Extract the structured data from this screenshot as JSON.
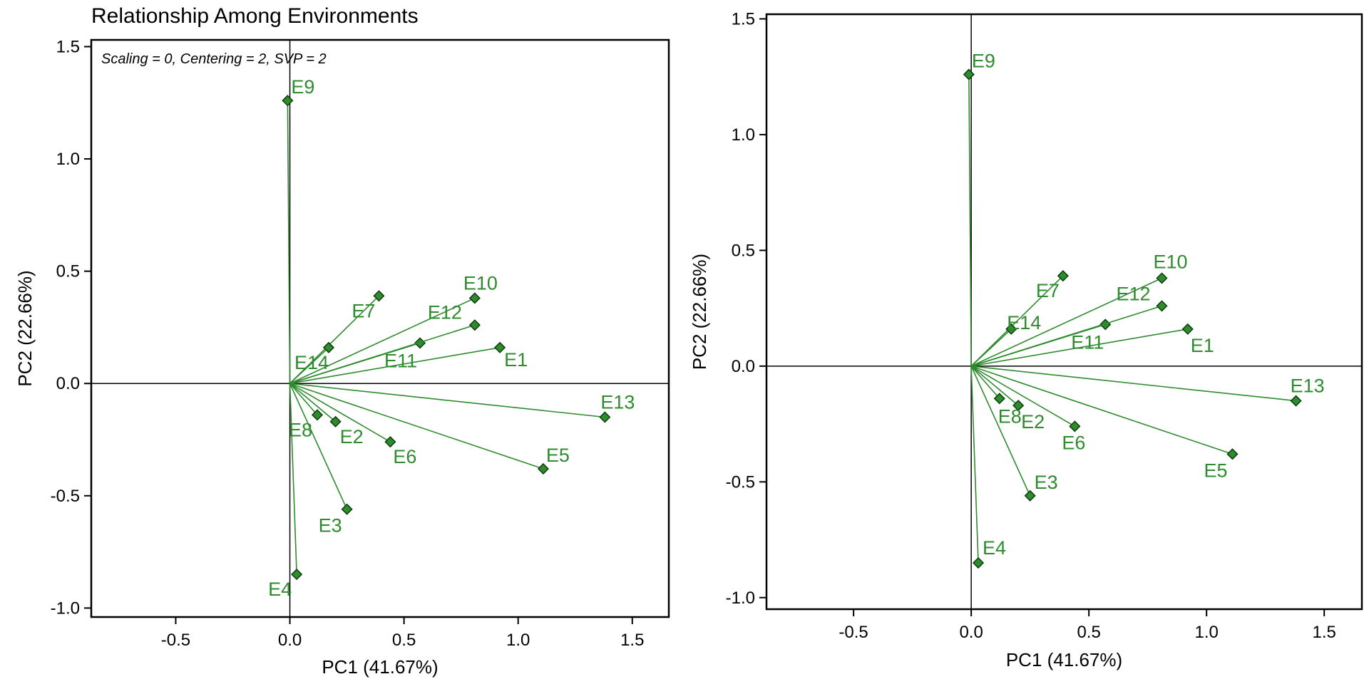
{
  "chart_data": [
    {
      "type": "scatter",
      "title": "Relationship Among Environments",
      "subtitle": "Scaling = 0, Centering = 2, SVP = 2",
      "xlabel": "PC1 (41.67%)",
      "ylabel": "PC2 (22.66%)",
      "xlim": [
        -0.87,
        1.66
      ],
      "ylim": [
        -1.04,
        1.53
      ],
      "xticks": [
        -0.5,
        0.0,
        0.5,
        1.0,
        1.5
      ],
      "yticks": [
        -1.0,
        -0.5,
        0.0,
        0.5,
        1.0,
        1.5
      ],
      "grid": false,
      "vectors_from_origin": true,
      "points": [
        {
          "label": "E1",
          "x": 0.92,
          "y": 0.16
        },
        {
          "label": "E2",
          "x": 0.2,
          "y": -0.17
        },
        {
          "label": "E3",
          "x": 0.25,
          "y": -0.56
        },
        {
          "label": "E4",
          "x": 0.03,
          "y": -0.85
        },
        {
          "label": "E5",
          "x": 1.11,
          "y": -0.38
        },
        {
          "label": "E6",
          "x": 0.44,
          "y": -0.26
        },
        {
          "label": "E7",
          "x": 0.39,
          "y": 0.39
        },
        {
          "label": "E8",
          "x": 0.12,
          "y": -0.14
        },
        {
          "label": "E9",
          "x": -0.01,
          "y": 1.26
        },
        {
          "label": "E10",
          "x": 0.81,
          "y": 0.38
        },
        {
          "label": "E11",
          "x": 0.57,
          "y": 0.18
        },
        {
          "label": "E12",
          "x": 0.81,
          "y": 0.26
        },
        {
          "label": "E13",
          "x": 1.38,
          "y": -0.15
        },
        {
          "label": "E14",
          "x": 0.17,
          "y": 0.16
        }
      ]
    },
    {
      "type": "scatter",
      "title": "",
      "xlabel": "PC1 (41.67%)",
      "ylabel": "PC2 (22.66%)",
      "xlim": [
        -0.87,
        1.66
      ],
      "ylim": [
        -1.05,
        1.52
      ],
      "xticks": [
        -0.5,
        0.0,
        0.5,
        1.0,
        1.5
      ],
      "yticks": [
        -1.0,
        -0.5,
        0.0,
        0.5,
        1.0,
        1.5
      ],
      "grid": false,
      "vectors_from_origin": true,
      "points": [
        {
          "label": "E1",
          "x": 0.92,
          "y": 0.16
        },
        {
          "label": "E2",
          "x": 0.2,
          "y": -0.17
        },
        {
          "label": "E3",
          "x": 0.25,
          "y": -0.56
        },
        {
          "label": "E4",
          "x": 0.03,
          "y": -0.85
        },
        {
          "label": "E5",
          "x": 1.11,
          "y": -0.38
        },
        {
          "label": "E6",
          "x": 0.44,
          "y": -0.26
        },
        {
          "label": "E7",
          "x": 0.39,
          "y": 0.39
        },
        {
          "label": "E8",
          "x": 0.12,
          "y": -0.14
        },
        {
          "label": "E9",
          "x": -0.01,
          "y": 1.26
        },
        {
          "label": "E10",
          "x": 0.81,
          "y": 0.38
        },
        {
          "label": "E11",
          "x": 0.57,
          "y": 0.18
        },
        {
          "label": "E12",
          "x": 0.81,
          "y": 0.26
        },
        {
          "label": "E13",
          "x": 1.38,
          "y": -0.15
        },
        {
          "label": "E14",
          "x": 0.17,
          "y": 0.16
        }
      ]
    }
  ],
  "colors": {
    "series": "#2e8b2e",
    "marker_edge": "#0c3d0c",
    "axis": "#000000"
  }
}
